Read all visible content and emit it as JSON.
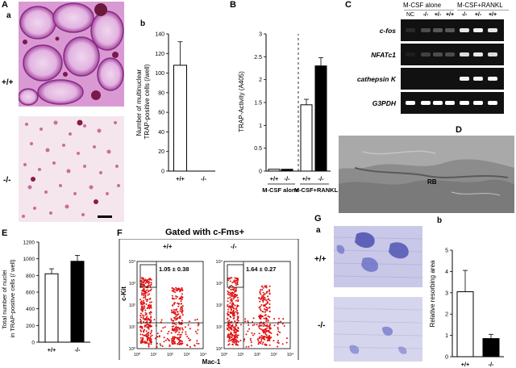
{
  "panels": {
    "A": {
      "label": "A",
      "sub_a": "a",
      "sub_b": "b",
      "row_top": "+/+",
      "row_bottom": "-/-"
    },
    "B": {
      "label": "B"
    },
    "C": {
      "label": "C",
      "header_nc": "NC",
      "header_mcsf": "M-CSF alone",
      "header_rankl": "M-CSF+RANKL",
      "lanes": [
        "-/-",
        "+/-",
        "+/+",
        "-/-",
        "+/-",
        "+/+"
      ],
      "genes": [
        "c-fos",
        "NFATc1",
        "cathepsin K",
        "G3PDH"
      ]
    },
    "D": {
      "label": "D",
      "annotation": "RB"
    },
    "E": {
      "label": "E"
    },
    "F": {
      "label": "F",
      "title": "Gated with c-Fms+",
      "left_genotype": "+/+",
      "right_genotype": "-/-",
      "left_stat": "1.05  ±  0.38",
      "right_stat": "1.64  ±  0.27",
      "ylabel": "c-Kit",
      "xlabel": "Mac-1",
      "ticks": [
        "10⁰",
        "10¹",
        "10²",
        "10³",
        "10⁴"
      ]
    },
    "G": {
      "label": "G",
      "sub_a": "a",
      "sub_b": "b",
      "row_top": "+/+",
      "row_bottom": "-/-"
    }
  },
  "chart_data": [
    {
      "id": "A-b",
      "type": "bar",
      "categories": [
        "+/+",
        "-/-"
      ],
      "values": [
        108,
        0
      ],
      "errors": [
        24,
        0
      ],
      "ylabel": "Number of multinuclear TRAP-positive cells (/well)",
      "ylim": [
        0,
        140
      ],
      "yticks": [
        0,
        20,
        40,
        60,
        80,
        100,
        120,
        140
      ],
      "colors": [
        "#ffffff",
        "#000000"
      ]
    },
    {
      "id": "B",
      "type": "bar",
      "categories": [
        "+/+",
        "-/-",
        "+/+",
        "-/-"
      ],
      "values": [
        0.04,
        0.04,
        1.45,
        2.3
      ],
      "errors": [
        0.0,
        0.0,
        0.12,
        0.18
      ],
      "groups": [
        "M-CSF alone",
        "M-CSF+RANKL"
      ],
      "ylabel": "TRAP-Activity (A405)",
      "ylim": [
        0,
        3.0
      ],
      "yticks": [
        0,
        0.5,
        1.0,
        1.5,
        2.0,
        2.5,
        3.0
      ],
      "colors": [
        "#ffffff",
        "#000000",
        "#ffffff",
        "#000000"
      ]
    },
    {
      "id": "E",
      "type": "bar",
      "categories": [
        "+/+",
        "-/-"
      ],
      "values": [
        820,
        970
      ],
      "errors": [
        60,
        70
      ],
      "ylabel": "Total number of nuclei in TRAP-positive cells (/ well)",
      "ylim": [
        0,
        1200
      ],
      "yticks": [
        0,
        200,
        400,
        600,
        800,
        1000,
        1200
      ],
      "colors": [
        "#ffffff",
        "#000000"
      ]
    },
    {
      "id": "G-b",
      "type": "bar",
      "categories": [
        "+/+",
        "-/-"
      ],
      "values": [
        3.05,
        0.85
      ],
      "errors": [
        1.0,
        0.2
      ],
      "ylabel": "Relative resorbing area",
      "ylim": [
        0,
        5
      ],
      "yticks": [
        0,
        1,
        2,
        3,
        4,
        5
      ],
      "colors": [
        "#ffffff",
        "#000000"
      ]
    }
  ]
}
